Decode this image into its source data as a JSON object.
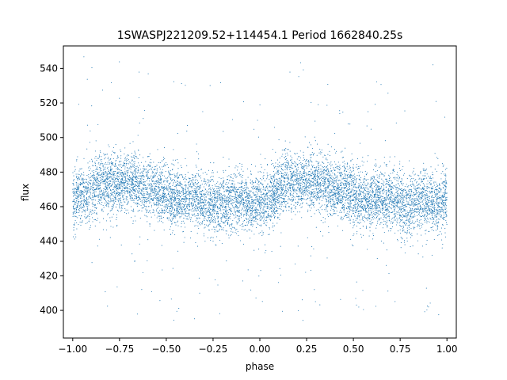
{
  "chart_data": {
    "type": "scatter",
    "title": "1SWASPJ221209.52+114454.1 Period 1662840.25s",
    "xlabel": "phase",
    "ylabel": "flux",
    "xlim": [
      -1.05,
      1.05
    ],
    "ylim": [
      384,
      553
    ],
    "xticks": [
      -1.0,
      -0.75,
      -0.5,
      -0.25,
      0.0,
      0.25,
      0.5,
      0.75,
      1.0
    ],
    "xtick_labels": [
      "−1.00",
      "−0.75",
      "−0.50",
      "−0.25",
      "0.00",
      "0.25",
      "0.50",
      "0.75",
      "1.00"
    ],
    "yticks": [
      400,
      420,
      440,
      460,
      480,
      500,
      520,
      540
    ],
    "ytick_labels": [
      "400",
      "420",
      "440",
      "460",
      "480",
      "500",
      "520",
      "540"
    ],
    "grid": false,
    "marker_color": "#1f77b4",
    "series": [
      {
        "phase": [
          -1.0,
          -0.95,
          -0.9,
          -0.85,
          -0.8,
          -0.75,
          -0.7,
          -0.65,
          -0.6,
          -0.55,
          -0.5,
          -0.45,
          -0.4,
          -0.35,
          -0.3,
          -0.25,
          -0.2,
          -0.15,
          -0.1,
          -0.05,
          0.0,
          0.05,
          0.1,
          0.15,
          0.2,
          0.25,
          0.3,
          0.35,
          0.4,
          0.45,
          0.5,
          0.55,
          0.6,
          0.65,
          0.7,
          0.75,
          0.8,
          0.85,
          0.9,
          0.95,
          1.0
        ],
        "flux_mean": [
          465,
          466,
          470,
          474,
          473,
          474,
          474,
          472,
          470,
          469,
          467,
          464,
          464,
          465,
          463,
          462,
          460,
          463,
          464,
          462,
          462,
          464,
          470,
          474,
          473,
          474,
          474,
          472,
          470,
          469,
          467,
          464,
          464,
          465,
          463,
          462,
          460,
          463,
          464,
          462,
          465
        ]
      }
    ]
  }
}
